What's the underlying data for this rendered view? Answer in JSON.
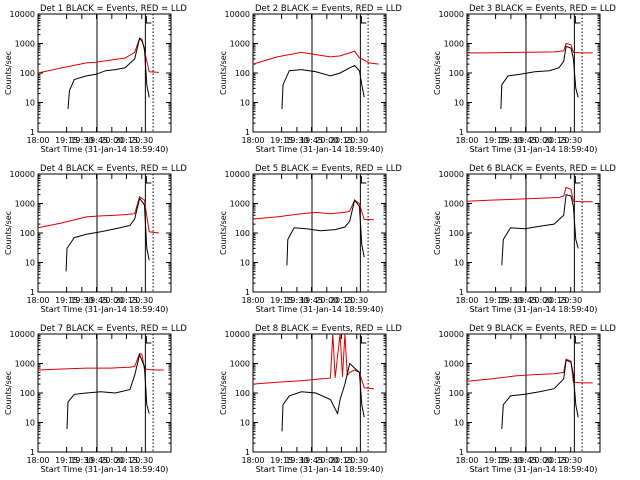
{
  "figure": {
    "colors": {
      "black_series": "#000000",
      "red_series": "#dd0000",
      "background": "#ffffff"
    }
  },
  "chart_data": [
    {
      "type": "line",
      "title": "Det 1  BLACK = Events, RED = LLD",
      "xlabel": "Start Time (31-Jan-14 18:59:40)",
      "ylabel": "Counts/sec",
      "xlim": [
        18.0,
        20.75
      ],
      "ylim": [
        1,
        10000
      ],
      "yscale": "log",
      "x_ticks": [
        "18:00",
        "19:15",
        "19:30",
        "19:45",
        "20:00",
        "20:15",
        "20:30"
      ],
      "y_ticks": [
        "1",
        "10",
        "100",
        "1000",
        "10000"
      ],
      "markers": {
        "solid": [
          19.22,
          20.22
        ],
        "dotted": [
          20.38
        ]
      },
      "series": [
        {
          "name": "RED = LLD",
          "color": "#dd0000",
          "x": [
            18.0,
            18.5,
            19.0,
            19.2,
            19.4,
            19.6,
            19.8,
            20.0,
            20.1,
            20.15,
            20.3,
            20.5
          ],
          "values": [
            100,
            150,
            220,
            230,
            260,
            290,
            320,
            500,
            1500,
            1400,
            110,
            105
          ]
        },
        {
          "name": "BLACK = Events",
          "color": "#000000",
          "x": [
            18.62,
            18.65,
            18.75,
            19.0,
            19.2,
            19.4,
            19.6,
            19.8,
            20.0,
            20.1,
            20.15,
            20.2,
            20.25,
            20.3
          ],
          "values": [
            6,
            25,
            60,
            80,
            90,
            120,
            130,
            150,
            300,
            1500,
            1200,
            700,
            40,
            15
          ]
        }
      ]
    },
    {
      "type": "line",
      "title": "Det 2  BLACK = Events, RED = LLD",
      "xlabel": "Start Time (31-Jan-14 18:59:40)",
      "ylabel": "Counts/sec",
      "xlim": [
        18.0,
        20.75
      ],
      "ylim": [
        1,
        10000
      ],
      "yscale": "log",
      "x_ticks": [
        "18:00",
        "19:15",
        "19:30",
        "19:45",
        "20:00",
        "20:15",
        "20:30"
      ],
      "y_ticks": [
        "1",
        "10",
        "100",
        "1000",
        "10000"
      ],
      "markers": {
        "solid": [
          19.22,
          20.22
        ],
        "dotted": [
          20.38
        ]
      },
      "series": [
        {
          "name": "RED = LLD",
          "color": "#dd0000",
          "x": [
            18.0,
            18.5,
            19.0,
            19.3,
            19.6,
            19.8,
            20.0,
            20.1,
            20.2,
            20.4,
            20.6
          ],
          "values": [
            200,
            350,
            500,
            420,
            350,
            380,
            480,
            550,
            330,
            220,
            200
          ]
        },
        {
          "name": "BLACK = Events",
          "color": "#000000",
          "x": [
            18.6,
            18.62,
            18.75,
            19.0,
            19.3,
            19.6,
            19.8,
            20.0,
            20.1,
            20.2,
            20.25,
            20.3
          ],
          "values": [
            6,
            40,
            120,
            130,
            110,
            80,
            100,
            150,
            180,
            120,
            40,
            15
          ]
        }
      ]
    },
    {
      "type": "line",
      "title": "Det 3  BLACK = Events, RED = LLD",
      "xlabel": "Start Time (31-Jan-14 18:59:40)",
      "ylabel": "Counts/sec",
      "xlim": [
        18.0,
        20.75
      ],
      "ylim": [
        1,
        10000
      ],
      "yscale": "log",
      "x_ticks": [
        "18:00",
        "19:15",
        "19:30",
        "19:45",
        "20:00",
        "20:15",
        "20:30"
      ],
      "y_ticks": [
        "1",
        "10",
        "100",
        "1000",
        "10000"
      ],
      "markers": {
        "solid": [
          19.22,
          20.22
        ],
        "dotted": [
          20.38
        ]
      },
      "series": [
        {
          "name": "RED = LLD",
          "color": "#dd0000",
          "x": [
            18.0,
            18.5,
            19.0,
            19.5,
            19.8,
            20.0,
            20.05,
            20.15,
            20.2,
            20.4,
            20.6
          ],
          "values": [
            480,
            480,
            500,
            510,
            520,
            560,
            1000,
            900,
            500,
            480,
            480
          ]
        },
        {
          "name": "BLACK = Events",
          "color": "#000000",
          "x": [
            18.7,
            18.72,
            18.85,
            19.1,
            19.4,
            19.7,
            19.9,
            20.0,
            20.05,
            20.15,
            20.2,
            20.25,
            20.3
          ],
          "values": [
            6,
            40,
            80,
            90,
            110,
            120,
            150,
            250,
            800,
            700,
            300,
            30,
            15
          ]
        }
      ]
    },
    {
      "type": "line",
      "title": "Det 4  BLACK = Events, RED = LLD",
      "xlabel": "Start Time (31-Jan-14 18:59:40)",
      "ylabel": "Counts/sec",
      "xlim": [
        18.0,
        20.75
      ],
      "ylim": [
        1,
        10000
      ],
      "yscale": "log",
      "x_ticks": [
        "18:00",
        "19:15",
        "19:30",
        "19:45",
        "20:00",
        "20:15",
        "20:30"
      ],
      "y_ticks": [
        "1",
        "10",
        "100",
        "1000",
        "10000"
      ],
      "markers": {
        "solid": [
          19.22,
          20.22
        ],
        "dotted": [
          20.38
        ]
      },
      "series": [
        {
          "name": "RED = LLD",
          "color": "#dd0000",
          "x": [
            18.0,
            18.5,
            19.0,
            19.3,
            19.6,
            19.8,
            20.0,
            20.1,
            20.2,
            20.3,
            20.5
          ],
          "values": [
            150,
            220,
            350,
            380,
            400,
            420,
            450,
            1700,
            1300,
            110,
            100
          ]
        },
        {
          "name": "BLACK = Events",
          "color": "#000000",
          "x": [
            18.58,
            18.6,
            18.75,
            19.0,
            19.3,
            19.6,
            19.9,
            20.0,
            20.1,
            20.2,
            20.25,
            20.3
          ],
          "values": [
            5,
            30,
            70,
            90,
            110,
            140,
            180,
            300,
            1500,
            900,
            30,
            12
          ]
        }
      ]
    },
    {
      "type": "line",
      "title": "Det 5  BLACK = Events, RED = LLD",
      "xlabel": "Start Time (31-Jan-14 18:59:40)",
      "ylabel": "Counts/sec",
      "xlim": [
        18.0,
        20.75
      ],
      "ylim": [
        1,
        10000
      ],
      "yscale": "log",
      "x_ticks": [
        "18:00",
        "19:15",
        "19:30",
        "19:45",
        "20:00",
        "20:15",
        "20:30"
      ],
      "y_ticks": [
        "1",
        "10",
        "100",
        "1000",
        "10000"
      ],
      "markers": {
        "solid": [
          19.22,
          20.22
        ],
        "dotted": [
          20.38
        ]
      },
      "series": [
        {
          "name": "RED = LLD",
          "color": "#dd0000",
          "x": [
            18.0,
            18.5,
            19.0,
            19.3,
            19.6,
            19.9,
            20.0,
            20.1,
            20.2,
            20.3,
            20.5
          ],
          "values": [
            300,
            350,
            450,
            500,
            450,
            500,
            550,
            1300,
            1000,
            290,
            280
          ]
        },
        {
          "name": "BLACK = Events",
          "color": "#000000",
          "x": [
            18.7,
            18.72,
            18.85,
            19.1,
            19.4,
            19.7,
            19.9,
            20.0,
            20.1,
            20.2,
            20.25,
            20.3
          ],
          "values": [
            8,
            60,
            150,
            140,
            120,
            130,
            160,
            250,
            1300,
            800,
            40,
            15
          ]
        }
      ]
    },
    {
      "type": "line",
      "title": "Det 6  BLACK = Events, RED = LLD",
      "xlabel": "Start Time (31-Jan-14 18:59:40)",
      "ylabel": "Counts/sec",
      "xlim": [
        18.0,
        20.75
      ],
      "ylim": [
        1,
        10000
      ],
      "yscale": "log",
      "x_ticks": [
        "18:00",
        "19:15",
        "19:30",
        "19:45",
        "20:00",
        "20:15",
        "20:30"
      ],
      "y_ticks": [
        "1",
        "10",
        "100",
        "1000",
        "10000"
      ],
      "markers": {
        "solid": [
          19.22,
          20.22
        ],
        "dotted": [
          20.38
        ]
      },
      "series": [
        {
          "name": "RED = LLD",
          "color": "#dd0000",
          "x": [
            18.0,
            18.5,
            19.0,
            19.5,
            19.9,
            20.0,
            20.05,
            20.15,
            20.2,
            20.4,
            20.6
          ],
          "values": [
            1200,
            1300,
            1400,
            1500,
            1600,
            1800,
            3500,
            3000,
            1200,
            1150,
            1150
          ]
        },
        {
          "name": "BLACK = Events",
          "color": "#000000",
          "x": [
            18.72,
            18.75,
            18.9,
            19.2,
            19.5,
            19.8,
            20.0,
            20.05,
            20.15,
            20.2,
            20.25,
            20.3
          ],
          "values": [
            8,
            60,
            150,
            140,
            170,
            200,
            400,
            2000,
            1800,
            800,
            60,
            30
          ]
        }
      ]
    },
    {
      "type": "line",
      "title": "Det 7  BLACK = Events, RED = LLD",
      "xlabel": "Start Time (31-Jan-14 18:59:40)",
      "ylabel": "Counts/sec",
      "xlim": [
        18.0,
        20.75
      ],
      "ylim": [
        1,
        10000
      ],
      "yscale": "log",
      "x_ticks": [
        "18:00",
        "19:15",
        "19:30",
        "19:45",
        "20:00",
        "20:15",
        "20:30"
      ],
      "y_ticks": [
        "1",
        "10",
        "100",
        "1000",
        "10000"
      ],
      "markers": {
        "solid": [
          19.22,
          20.22
        ],
        "dotted": [
          20.38
        ]
      },
      "series": [
        {
          "name": "RED = LLD",
          "color": "#dd0000",
          "x": [
            18.0,
            18.5,
            19.0,
            19.5,
            19.9,
            20.0,
            20.1,
            20.15,
            20.2,
            20.4,
            20.6
          ],
          "values": [
            600,
            650,
            700,
            700,
            750,
            800,
            2200,
            2000,
            650,
            600,
            600
          ]
        },
        {
          "name": "BLACK = Events",
          "color": "#000000",
          "x": [
            18.6,
            18.62,
            18.75,
            19.0,
            19.3,
            19.6,
            19.9,
            20.0,
            20.1,
            20.2,
            20.25,
            20.3
          ],
          "values": [
            6,
            50,
            90,
            100,
            110,
            100,
            130,
            400,
            2000,
            800,
            40,
            20
          ]
        }
      ]
    },
    {
      "type": "line",
      "title": "Det 8  BLACK = Events, RED = LLD",
      "xlabel": "Start Time (31-Jan-14 18:59:40)",
      "ylabel": "Counts/sec",
      "xlim": [
        18.0,
        20.75
      ],
      "ylim": [
        1,
        10000
      ],
      "yscale": "log",
      "x_ticks": [
        "18:00",
        "19:15",
        "19:30",
        "19:45",
        "20:00",
        "20:15",
        "20:30"
      ],
      "y_ticks": [
        "1",
        "10",
        "100",
        "1000",
        "10000"
      ],
      "markers": {
        "solid": [
          19.22,
          20.22
        ],
        "dotted": [
          20.38
        ]
      },
      "series": [
        {
          "name": "RED = LLD",
          "color": "#dd0000",
          "x": [
            18.0,
            18.5,
            19.0,
            19.4,
            19.6,
            19.65,
            19.7,
            19.8,
            19.85,
            19.9,
            19.95,
            20.0,
            20.1,
            20.2,
            20.3,
            20.5
          ],
          "values": [
            200,
            230,
            260,
            300,
            320,
            10000,
            330,
            10000,
            350,
            10000,
            400,
            500,
            600,
            500,
            150,
            140
          ]
        },
        {
          "name": "BLACK = Events",
          "color": "#000000",
          "x": [
            18.6,
            18.62,
            18.75,
            19.0,
            19.3,
            19.6,
            19.75,
            19.8,
            19.9,
            20.0,
            20.1,
            20.2,
            20.25,
            20.3
          ],
          "values": [
            5,
            40,
            80,
            110,
            100,
            60,
            20,
            60,
            200,
            1000,
            700,
            500,
            40,
            15
          ]
        }
      ]
    },
    {
      "type": "line",
      "title": "Det 9  BLACK = Events, RED = LLD",
      "xlabel": "Start Time (31-Jan-14 18:59:40)",
      "ylabel": "Counts/sec",
      "xlim": [
        18.0,
        20.75
      ],
      "ylim": [
        1,
        10000
      ],
      "yscale": "log",
      "x_ticks": [
        "18:00",
        "19:15",
        "19:30",
        "19:45",
        "20:00",
        "20:15",
        "20:30"
      ],
      "y_ticks": [
        "1",
        "10",
        "100",
        "1000",
        "10000"
      ],
      "markers": {
        "solid": [
          19.22,
          20.22
        ],
        "dotted": [
          20.38
        ]
      },
      "series": [
        {
          "name": "RED = LLD",
          "color": "#dd0000",
          "x": [
            18.0,
            18.5,
            19.0,
            19.4,
            19.8,
            20.0,
            20.05,
            20.15,
            20.2,
            20.4,
            20.6
          ],
          "values": [
            250,
            300,
            380,
            420,
            450,
            500,
            1400,
            1200,
            230,
            220,
            220
          ]
        },
        {
          "name": "BLACK = Events",
          "color": "#000000",
          "x": [
            18.72,
            18.75,
            18.9,
            19.2,
            19.5,
            19.8,
            20.0,
            20.05,
            20.15,
            20.2,
            20.25,
            20.3
          ],
          "values": [
            6,
            40,
            80,
            90,
            110,
            140,
            300,
            1300,
            1100,
            400,
            40,
            15
          ]
        }
      ]
    }
  ]
}
